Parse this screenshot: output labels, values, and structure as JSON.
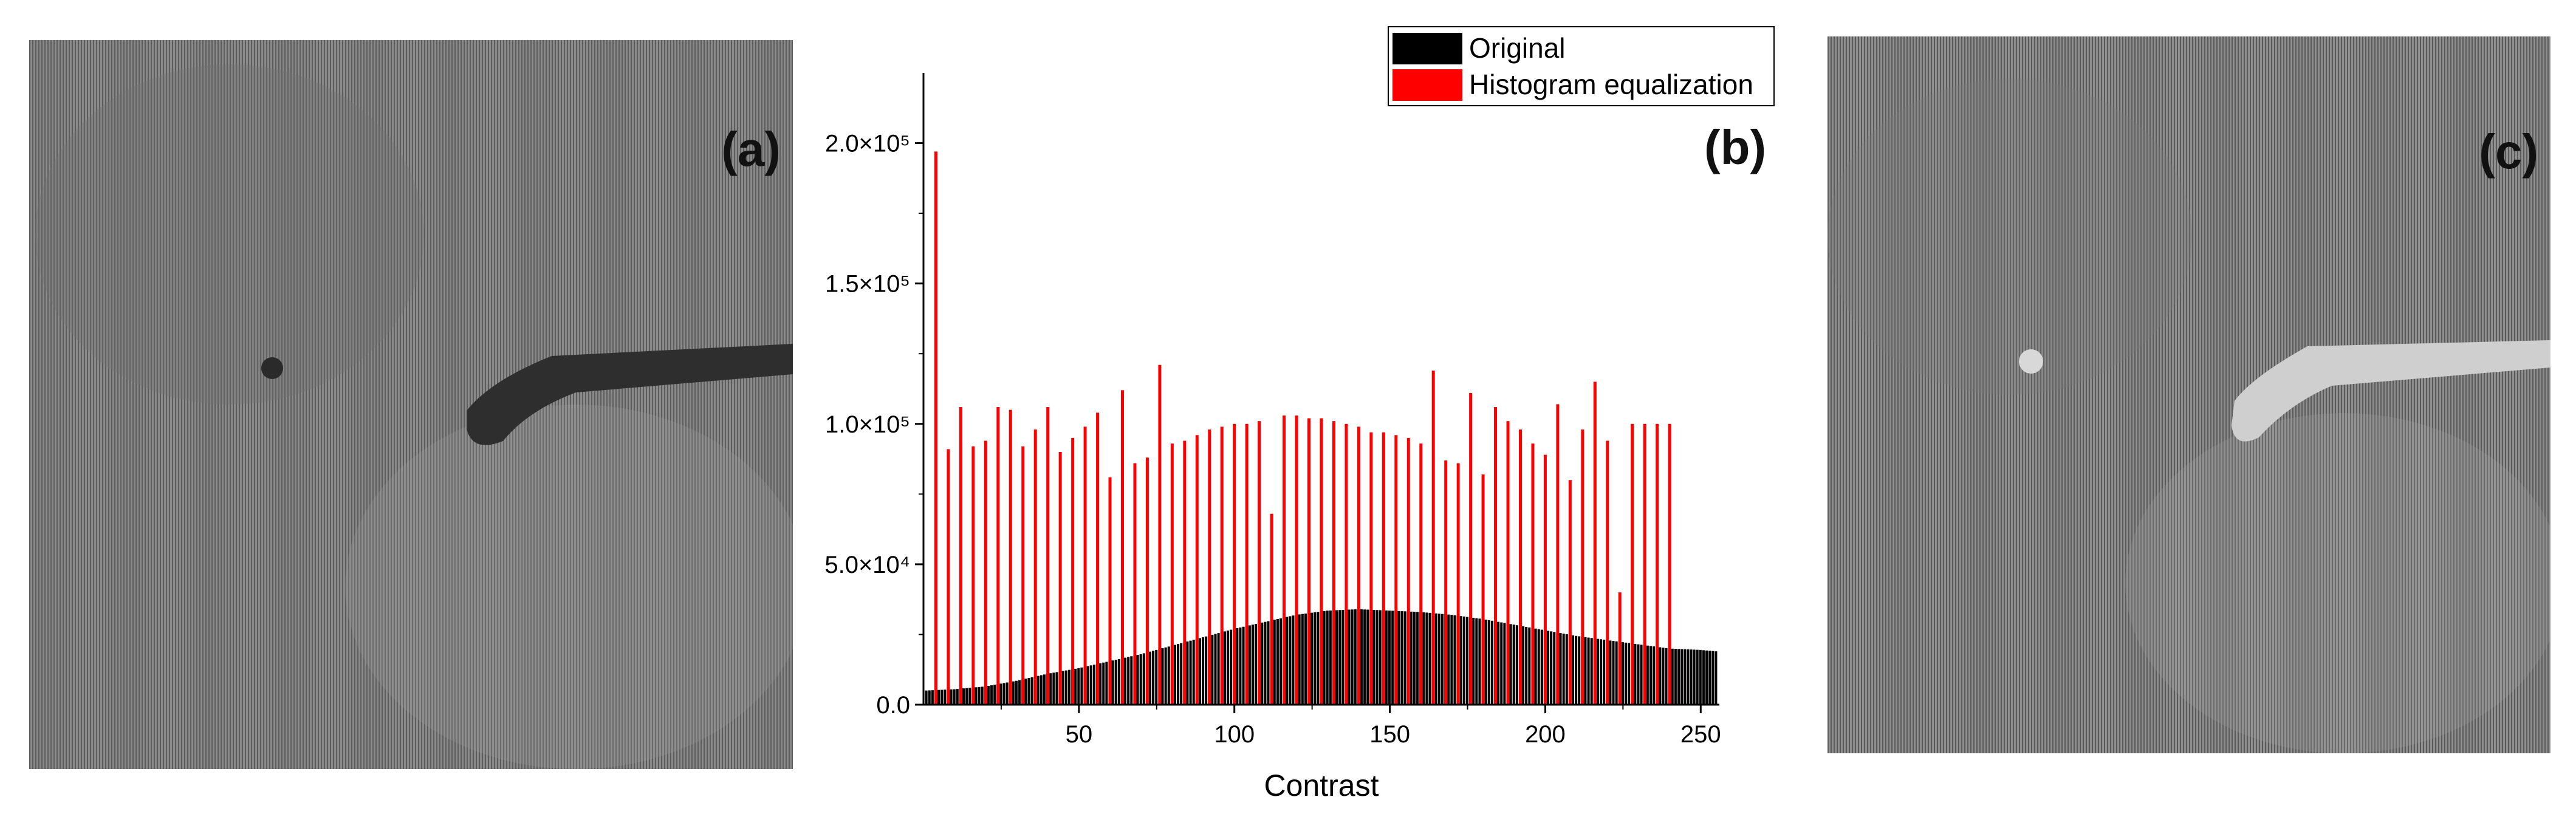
{
  "panel_labels": {
    "a": "(a)",
    "b": "(b)",
    "c": "(c)"
  },
  "panels": {
    "a": {
      "content": "grayscale microscope image, original",
      "tone": "darker defect on gray textured background"
    },
    "c": {
      "content": "grayscale microscope image, histogram equalized",
      "tone": "brighter defect on gray textured background"
    }
  },
  "colors": {
    "original": "#000000",
    "equalized": "#ff0000",
    "axis": "#000000"
  },
  "chart_data": {
    "type": "bar",
    "title": "",
    "xlabel": "Contrast",
    "ylabel": "",
    "xlim": [
      0,
      256
    ],
    "ylim": [
      0,
      225000
    ],
    "x_ticks": [
      50,
      100,
      150,
      200,
      250
    ],
    "y_ticks": [
      {
        "value": 0,
        "label": "0.0"
      },
      {
        "value": 50000,
        "label": "5.0×10⁴"
      },
      {
        "value": 100000,
        "label": "1.0×10⁵"
      },
      {
        "value": 150000,
        "label": "1.5×10⁵"
      },
      {
        "value": 200000,
        "label": "2.0×10⁵"
      }
    ],
    "legend": {
      "position": "top-right",
      "entries": [
        "Original",
        "Histogram equalization"
      ]
    },
    "grid": false,
    "series": [
      {
        "name": "Original",
        "color": "#000000",
        "style": "filled distribution, every bin 0-255",
        "x": [
          0,
          10,
          20,
          30,
          40,
          50,
          60,
          70,
          80,
          90,
          100,
          110,
          120,
          130,
          140,
          150,
          160,
          170,
          180,
          190,
          200,
          210,
          220,
          230,
          240,
          250,
          255
        ],
        "values": [
          5000,
          5500,
          6500,
          8500,
          11000,
          13000,
          15500,
          18000,
          21000,
          24000,
          27000,
          29500,
          32000,
          33500,
          34000,
          33500,
          33000,
          32000,
          30500,
          28500,
          26500,
          24500,
          23000,
          21500,
          20000,
          19500,
          19000
        ]
      },
      {
        "name": "Histogram equalization",
        "color": "#ff0000",
        "style": "sparse spikes",
        "x": [
          4,
          8,
          12,
          16,
          20,
          24,
          28,
          32,
          36,
          40,
          44,
          48,
          52,
          56,
          60,
          64,
          68,
          72,
          76,
          80,
          84,
          88,
          92,
          96,
          100,
          104,
          108,
          112,
          116,
          120,
          124,
          128,
          132,
          136,
          140,
          144,
          148,
          152,
          156,
          160,
          164,
          168,
          172,
          176,
          180,
          184,
          188,
          192,
          196,
          200,
          204,
          208,
          212,
          216,
          220,
          224,
          228,
          232,
          236,
          240
        ],
        "values": [
          197000,
          91000,
          106000,
          92000,
          94000,
          106000,
          105000,
          92000,
          98000,
          106000,
          90000,
          95000,
          99000,
          104000,
          81000,
          112000,
          86000,
          88000,
          121000,
          93000,
          94000,
          96000,
          98000,
          99000,
          100000,
          100000,
          101000,
          68000,
          103000,
          103000,
          102000,
          102000,
          101000,
          100000,
          99000,
          97000,
          97000,
          96000,
          95000,
          93000,
          119000,
          87000,
          86000,
          111000,
          82000,
          106000,
          101000,
          98000,
          93000,
          89000,
          107000,
          80000,
          98000,
          115000,
          94000,
          40000,
          100000,
          100000,
          100000,
          100000
        ]
      }
    ]
  }
}
